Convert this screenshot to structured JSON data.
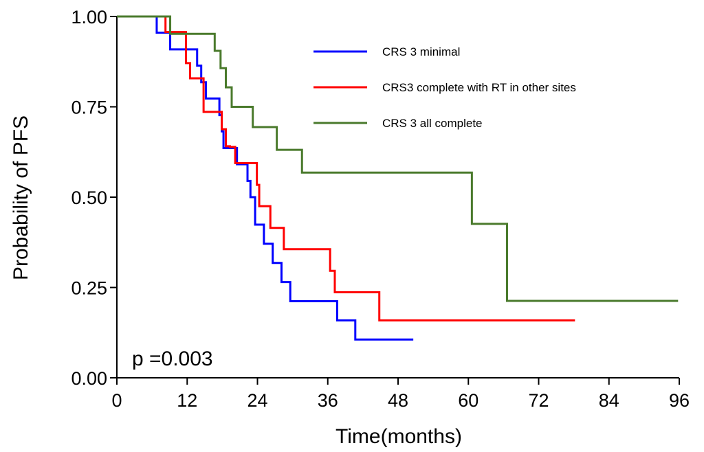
{
  "chart_data": {
    "type": "line",
    "title": "",
    "xlabel": "Time(months)",
    "ylabel": "Probability of PFS",
    "xlim": [
      0,
      96
    ],
    "ylim": [
      0,
      1
    ],
    "x_ticks": [
      0,
      12,
      24,
      36,
      48,
      60,
      72,
      84,
      96
    ],
    "x_tick_labels": [
      "0",
      "12",
      "24",
      "36",
      "48",
      "60",
      "72",
      "84",
      "96"
    ],
    "y_ticks": [
      0,
      0.25,
      0.5,
      0.75,
      1
    ],
    "y_tick_labels": [
      "0.00",
      "0.25",
      "0.50",
      "0.75",
      "1.00"
    ],
    "grid": false,
    "legend_position": "top-right",
    "annotation": "p =0.003",
    "step": true,
    "series": [
      {
        "name": "CRS 3 minimal",
        "color": "#0000ff",
        "x": [
          0,
          6.8,
          9.1,
          13.7,
          14.4,
          15.2,
          17.5,
          17.9,
          18.2,
          20.5,
          22.3,
          22.8,
          23.6,
          25.1,
          26.6,
          28.1,
          29.6,
          37.6,
          40.7,
          50.6
        ],
        "y": [
          1,
          0.955,
          0.909,
          0.864,
          0.818,
          0.773,
          0.727,
          0.682,
          0.636,
          0.591,
          0.545,
          0.5,
          0.424,
          0.371,
          0.318,
          0.265,
          0.212,
          0.159,
          0.106,
          0.106
        ]
      },
      {
        "name": "CRS3 complete with RT in other sites",
        "color": "#ff0000",
        "x": [
          0,
          8.3,
          11.8,
          12.5,
          14.8,
          17.9,
          18.6,
          19.3,
          20.2,
          23.6,
          23.9,
          24.3,
          26.2,
          28.5,
          36.4,
          37.2,
          44.8,
          78.2
        ],
        "y": [
          1,
          0.957,
          0.871,
          0.829,
          0.736,
          0.688,
          0.641,
          0.639,
          0.594,
          0.594,
          0.534,
          0.475,
          0.415,
          0.356,
          0.296,
          0.237,
          0.159,
          0.159
        ]
      },
      {
        "name": "CRS 3 all complete",
        "color": "#4a7a2c",
        "x": [
          0,
          9.1,
          16.7,
          17.7,
          18.6,
          19.6,
          22.8,
          23.2,
          27.3,
          31.6,
          60.6,
          66.6,
          95.8
        ],
        "y": [
          1,
          0.952,
          0.905,
          0.857,
          0.804,
          0.75,
          0.75,
          0.694,
          0.631,
          0.568,
          0.426,
          0.213,
          0.213
        ]
      }
    ]
  }
}
